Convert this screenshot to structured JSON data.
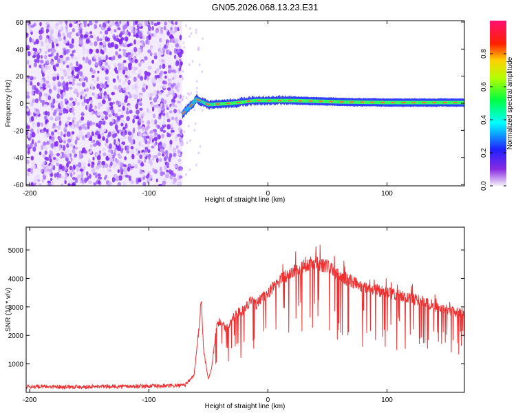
{
  "title": "GN05.2026.068.13.23.E31",
  "colors": {
    "series": "#f03030",
    "frame": "#000000",
    "background": "#ffffff"
  },
  "chart_data": [
    {
      "type": "heatmap",
      "name": "spectrogram",
      "xlabel": "Height of straight line (km)",
      "ylabel": "Frequency (Hz)",
      "xlim": [
        -203,
        165
      ],
      "ylim": [
        -61,
        61
      ],
      "xticks": [
        -200,
        -100,
        0,
        100
      ],
      "yticks": [
        -60,
        -40,
        -20,
        0,
        20,
        40,
        60
      ],
      "colorbar": {
        "label": "Normalized spectral amplitude",
        "range": [
          0.0,
          1.0
        ],
        "ticks": [
          0.0,
          0.2,
          0.4,
          0.6,
          0.8
        ]
      },
      "features": {
        "noise_region_km": [
          -203,
          -72
        ],
        "signal_track": [
          {
            "x": -72,
            "f": -8
          },
          {
            "x": -65,
            "f": -2
          },
          {
            "x": -60,
            "f": 3
          },
          {
            "x": -50,
            "f": -1
          },
          {
            "x": -30,
            "f": 0
          },
          {
            "x": -10,
            "f": 2
          },
          {
            "x": 20,
            "f": 2
          },
          {
            "x": 60,
            "f": 1
          },
          {
            "x": 100,
            "f": 0.5
          },
          {
            "x": 165,
            "f": 0.5
          }
        ]
      }
    },
    {
      "type": "line",
      "name": "snr",
      "xlabel": "Height of straight line (km)",
      "ylabel": "SNR (10 * v/v)",
      "xlim": [
        -203,
        165
      ],
      "ylim": [
        0,
        5800
      ],
      "xticks": [
        -200,
        -100,
        0,
        100
      ],
      "yticks": [
        1000,
        2000,
        3000,
        4000,
        5000
      ],
      "series": [
        {
          "name": "SNR",
          "points": [
            [
              -203,
              200
            ],
            [
              -180,
              200
            ],
            [
              -150,
              200
            ],
            [
              -120,
              210
            ],
            [
              -90,
              220
            ],
            [
              -70,
              240
            ],
            [
              -62,
              600
            ],
            [
              -58,
              2200
            ],
            [
              -56,
              3300
            ],
            [
              -54,
              1500
            ],
            [
              -50,
              450
            ],
            [
              -47,
              900
            ],
            [
              -43,
              2400
            ],
            [
              -40,
              2500
            ],
            [
              -35,
              2200
            ],
            [
              -30,
              2600
            ],
            [
              -25,
              2800
            ],
            [
              -20,
              2900
            ],
            [
              -15,
              3200
            ],
            [
              -10,
              3100
            ],
            [
              -5,
              3300
            ],
            [
              0,
              3500
            ],
            [
              5,
              3700
            ],
            [
              10,
              3900
            ],
            [
              15,
              4100
            ],
            [
              20,
              4200
            ],
            [
              30,
              4400
            ],
            [
              40,
              4600
            ],
            [
              45,
              4500
            ],
            [
              50,
              4400
            ],
            [
              60,
              4100
            ],
            [
              70,
              3900
            ],
            [
              80,
              3700
            ],
            [
              90,
              3600
            ],
            [
              100,
              3500
            ],
            [
              110,
              3400
            ],
            [
              120,
              3300
            ],
            [
              130,
              3200
            ],
            [
              140,
              3000
            ],
            [
              150,
              2900
            ],
            [
              160,
              2800
            ],
            [
              165,
              2850
            ]
          ]
        }
      ]
    }
  ]
}
